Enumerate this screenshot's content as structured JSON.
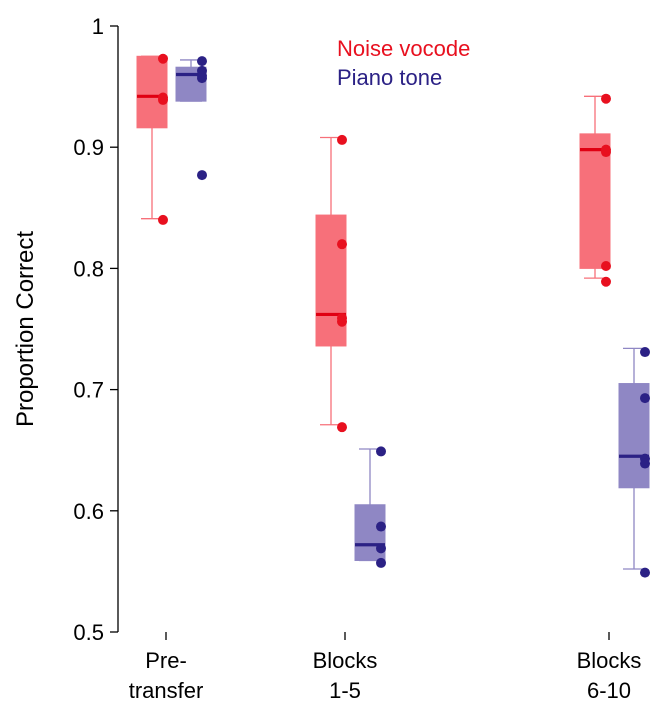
{
  "chart_data": {
    "type": "box",
    "ylabel": "Proportion Correct",
    "ylim": [
      0.5,
      1.0
    ],
    "yticks": [
      {
        "value": 0.5,
        "label": "0.5"
      },
      {
        "value": 0.6,
        "label": "0.6"
      },
      {
        "value": 0.7,
        "label": "0.7"
      },
      {
        "value": 0.8,
        "label": "0.8"
      },
      {
        "value": 0.9,
        "label": "0.9"
      },
      {
        "value": 1.0,
        "label": "1"
      }
    ],
    "categories": [
      {
        "line1": "Pre-",
        "line2": "transfer"
      },
      {
        "line1": "Blocks",
        "line2": "1-5"
      },
      {
        "line1": "Blocks",
        "line2": "6-10"
      }
    ],
    "series": [
      {
        "name": "Noise vocode",
        "box_color": "#f7707a",
        "median_color": "#e00012",
        "point_color": "#e8101f",
        "boxes": [
          {
            "whisker_low": 0.841,
            "q1": 0.916,
            "median": 0.942,
            "q3": 0.975,
            "whisker_high": 0.975,
            "points": [
              0.973,
              0.941,
              0.939,
              0.84
            ]
          },
          {
            "whisker_low": 0.671,
            "q1": 0.736,
            "median": 0.762,
            "q3": 0.844,
            "whisker_high": 0.908,
            "points": [
              0.906,
              0.82,
              0.759,
              0.756,
              0.669
            ]
          },
          {
            "whisker_low": 0.792,
            "q1": 0.8,
            "median": 0.898,
            "q3": 0.911,
            "whisker_high": 0.942,
            "points": [
              0.94,
              0.898,
              0.896,
              0.802,
              0.789
            ]
          }
        ]
      },
      {
        "name": "Piano tone",
        "box_color": "#8f87c4",
        "median_color": "#2b2185",
        "point_color": "#2b2185",
        "boxes": [
          {
            "whisker_low": 0.938,
            "q1": 0.938,
            "median": 0.96,
            "q3": 0.966,
            "whisker_high": 0.972,
            "points": [
              0.971,
              0.963,
              0.959,
              0.957,
              0.877
            ]
          },
          {
            "whisker_low": 0.559,
            "q1": 0.559,
            "median": 0.572,
            "q3": 0.605,
            "whisker_high": 0.651,
            "points": [
              0.649,
              0.587,
              0.569,
              0.557
            ]
          },
          {
            "whisker_low": 0.552,
            "q1": 0.619,
            "median": 0.645,
            "q3": 0.705,
            "whisker_high": 0.734,
            "points": [
              0.731,
              0.693,
              0.643,
              0.639,
              0.549
            ]
          }
        ]
      }
    ],
    "legend_position": "top"
  }
}
